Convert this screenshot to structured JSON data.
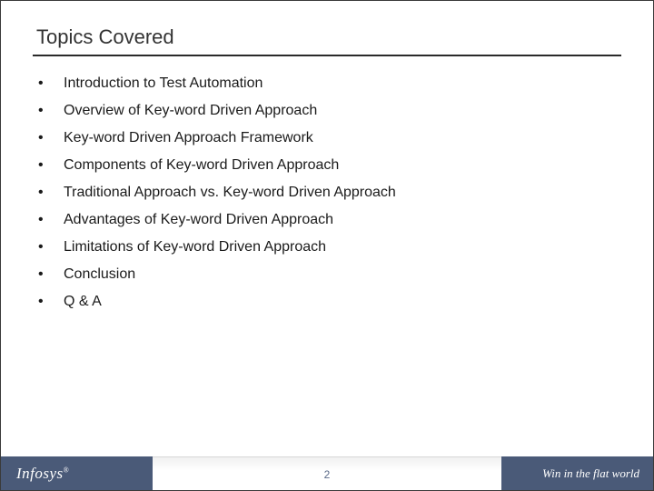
{
  "slide": {
    "title": "Topics Covered",
    "bullets": [
      "Introduction to Test Automation",
      "Overview of Key-word Driven Approach",
      "Key-word Driven Approach Framework",
      "Components of Key-word Driven Approach",
      "Traditional Approach vs. Key-word Driven Approach",
      "Advantages of Key-word Driven Approach",
      "Limitations of Key-word Driven Approach",
      "Conclusion",
      "Q & A"
    ],
    "page_number": "2"
  },
  "footer": {
    "company": "Infosys",
    "tagline": "Win in the flat world"
  },
  "colors": {
    "footer_band": "#4a5a78",
    "text_primary": "#1a1a1a",
    "title_text": "#333333",
    "page_num": "#5a6a88",
    "underline": "#2a2a2a"
  }
}
